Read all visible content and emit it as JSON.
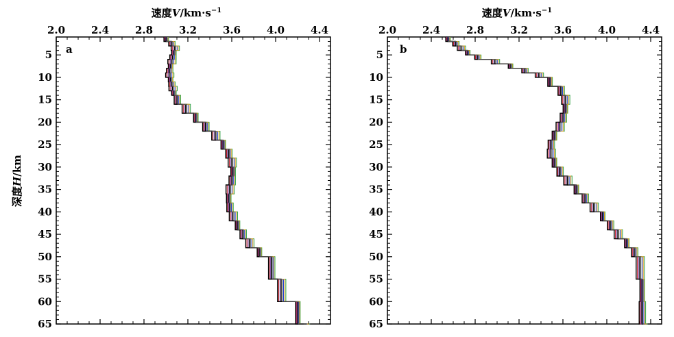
{
  "chart_data": [
    {
      "type": "line",
      "panel_label": "a",
      "xlabel": {
        "prefix": "速度",
        "var": "V",
        "unit": "/km·s",
        "sup": "−1"
      },
      "ylabel": {
        "prefix": "深度",
        "var": "H",
        "unit": "/km"
      },
      "xlim": [
        2.0,
        4.5
      ],
      "ylim": [
        1,
        65
      ],
      "y_inverted": true,
      "x_axis_position": "top",
      "xticks": [
        2.0,
        2.4,
        2.8,
        3.2,
        3.6,
        4.0,
        4.4
      ],
      "xtick_labels": [
        "2.0",
        "2.4",
        "2.8",
        "3.2",
        "3.6",
        "4.0",
        "4.4"
      ],
      "yticks": [
        5,
        10,
        15,
        20,
        25,
        30,
        35,
        40,
        45,
        50,
        55,
        60,
        65
      ],
      "ytick_labels": [
        "5",
        "10",
        "15",
        "20",
        "25",
        "30",
        "35",
        "40",
        "45",
        "50",
        "55",
        "60",
        "65"
      ],
      "series_colors": [
        "#000000",
        "#1f3fd0",
        "#c8202a",
        "#2ea043",
        "#7b3fa0",
        "#e0a020",
        "#000000",
        "#555555"
      ],
      "series_offsets": [
        0,
        0.012,
        -0.012,
        0.024,
        -0.006,
        0.018,
        -0.018,
        0.006
      ],
      "layer_depths": [
        1,
        2,
        3,
        4,
        5,
        6,
        7,
        8,
        9,
        10,
        11,
        12,
        13,
        14,
        16,
        18,
        20,
        22,
        24,
        26,
        28,
        30,
        32,
        34,
        36,
        38,
        40,
        42,
        44,
        46,
        48,
        50,
        55,
        60,
        65
      ],
      "velocities": [
        3.0,
        3.05,
        3.08,
        3.07,
        3.06,
        3.05,
        3.04,
        3.03,
        3.03,
        3.04,
        3.05,
        3.06,
        3.07,
        3.1,
        3.18,
        3.27,
        3.36,
        3.45,
        3.52,
        3.57,
        3.6,
        3.61,
        3.6,
        3.58,
        3.57,
        3.58,
        3.61,
        3.65,
        3.7,
        3.76,
        3.85,
        3.96,
        4.05,
        4.2,
        4.28
      ]
    },
    {
      "type": "line",
      "panel_label": "b",
      "xlabel": {
        "prefix": "速度",
        "var": "V",
        "unit": "/km·s",
        "sup": "−1"
      },
      "ylabel": {
        "prefix": "",
        "var": "",
        "unit": ""
      },
      "xlim": [
        2.0,
        4.5
      ],
      "ylim": [
        1,
        65
      ],
      "y_inverted": true,
      "x_axis_position": "top",
      "xticks": [
        2.0,
        2.4,
        2.8,
        3.2,
        3.6,
        4.0,
        4.4
      ],
      "xtick_labels": [
        "2.0",
        "2.4",
        "2.8",
        "3.2",
        "3.6",
        "4.0",
        "4.4"
      ],
      "yticks": [
        5,
        10,
        15,
        20,
        25,
        30,
        35,
        40,
        45,
        50,
        55,
        60,
        65
      ],
      "ytick_labels": [
        "5",
        "10",
        "15",
        "20",
        "25",
        "30",
        "35",
        "40",
        "45",
        "50",
        "55",
        "60",
        "65"
      ],
      "series_colors": [
        "#000000",
        "#1f3fd0",
        "#c8202a",
        "#2ea043",
        "#7b3fa0",
        "#e0a020",
        "#000000",
        "#555555"
      ],
      "series_offsets": [
        0,
        0.012,
        -0.012,
        0.024,
        -0.006,
        0.018,
        -0.018,
        0.006
      ],
      "layer_depths": [
        1,
        2,
        3,
        4,
        5,
        6,
        7,
        8,
        9,
        10,
        12,
        14,
        16,
        18,
        20,
        22,
        24,
        26,
        28,
        30,
        32,
        34,
        36,
        38,
        40,
        42,
        44,
        46,
        48,
        50,
        55,
        60,
        65
      ],
      "velocities": [
        2.55,
        2.62,
        2.67,
        2.73,
        2.82,
        2.98,
        3.12,
        3.25,
        3.38,
        3.48,
        3.58,
        3.62,
        3.62,
        3.6,
        3.57,
        3.52,
        3.49,
        3.49,
        3.52,
        3.57,
        3.64,
        3.72,
        3.8,
        3.88,
        3.96,
        4.03,
        4.1,
        4.18,
        4.25,
        4.3,
        4.32,
        4.32,
        4.33
      ]
    }
  ]
}
